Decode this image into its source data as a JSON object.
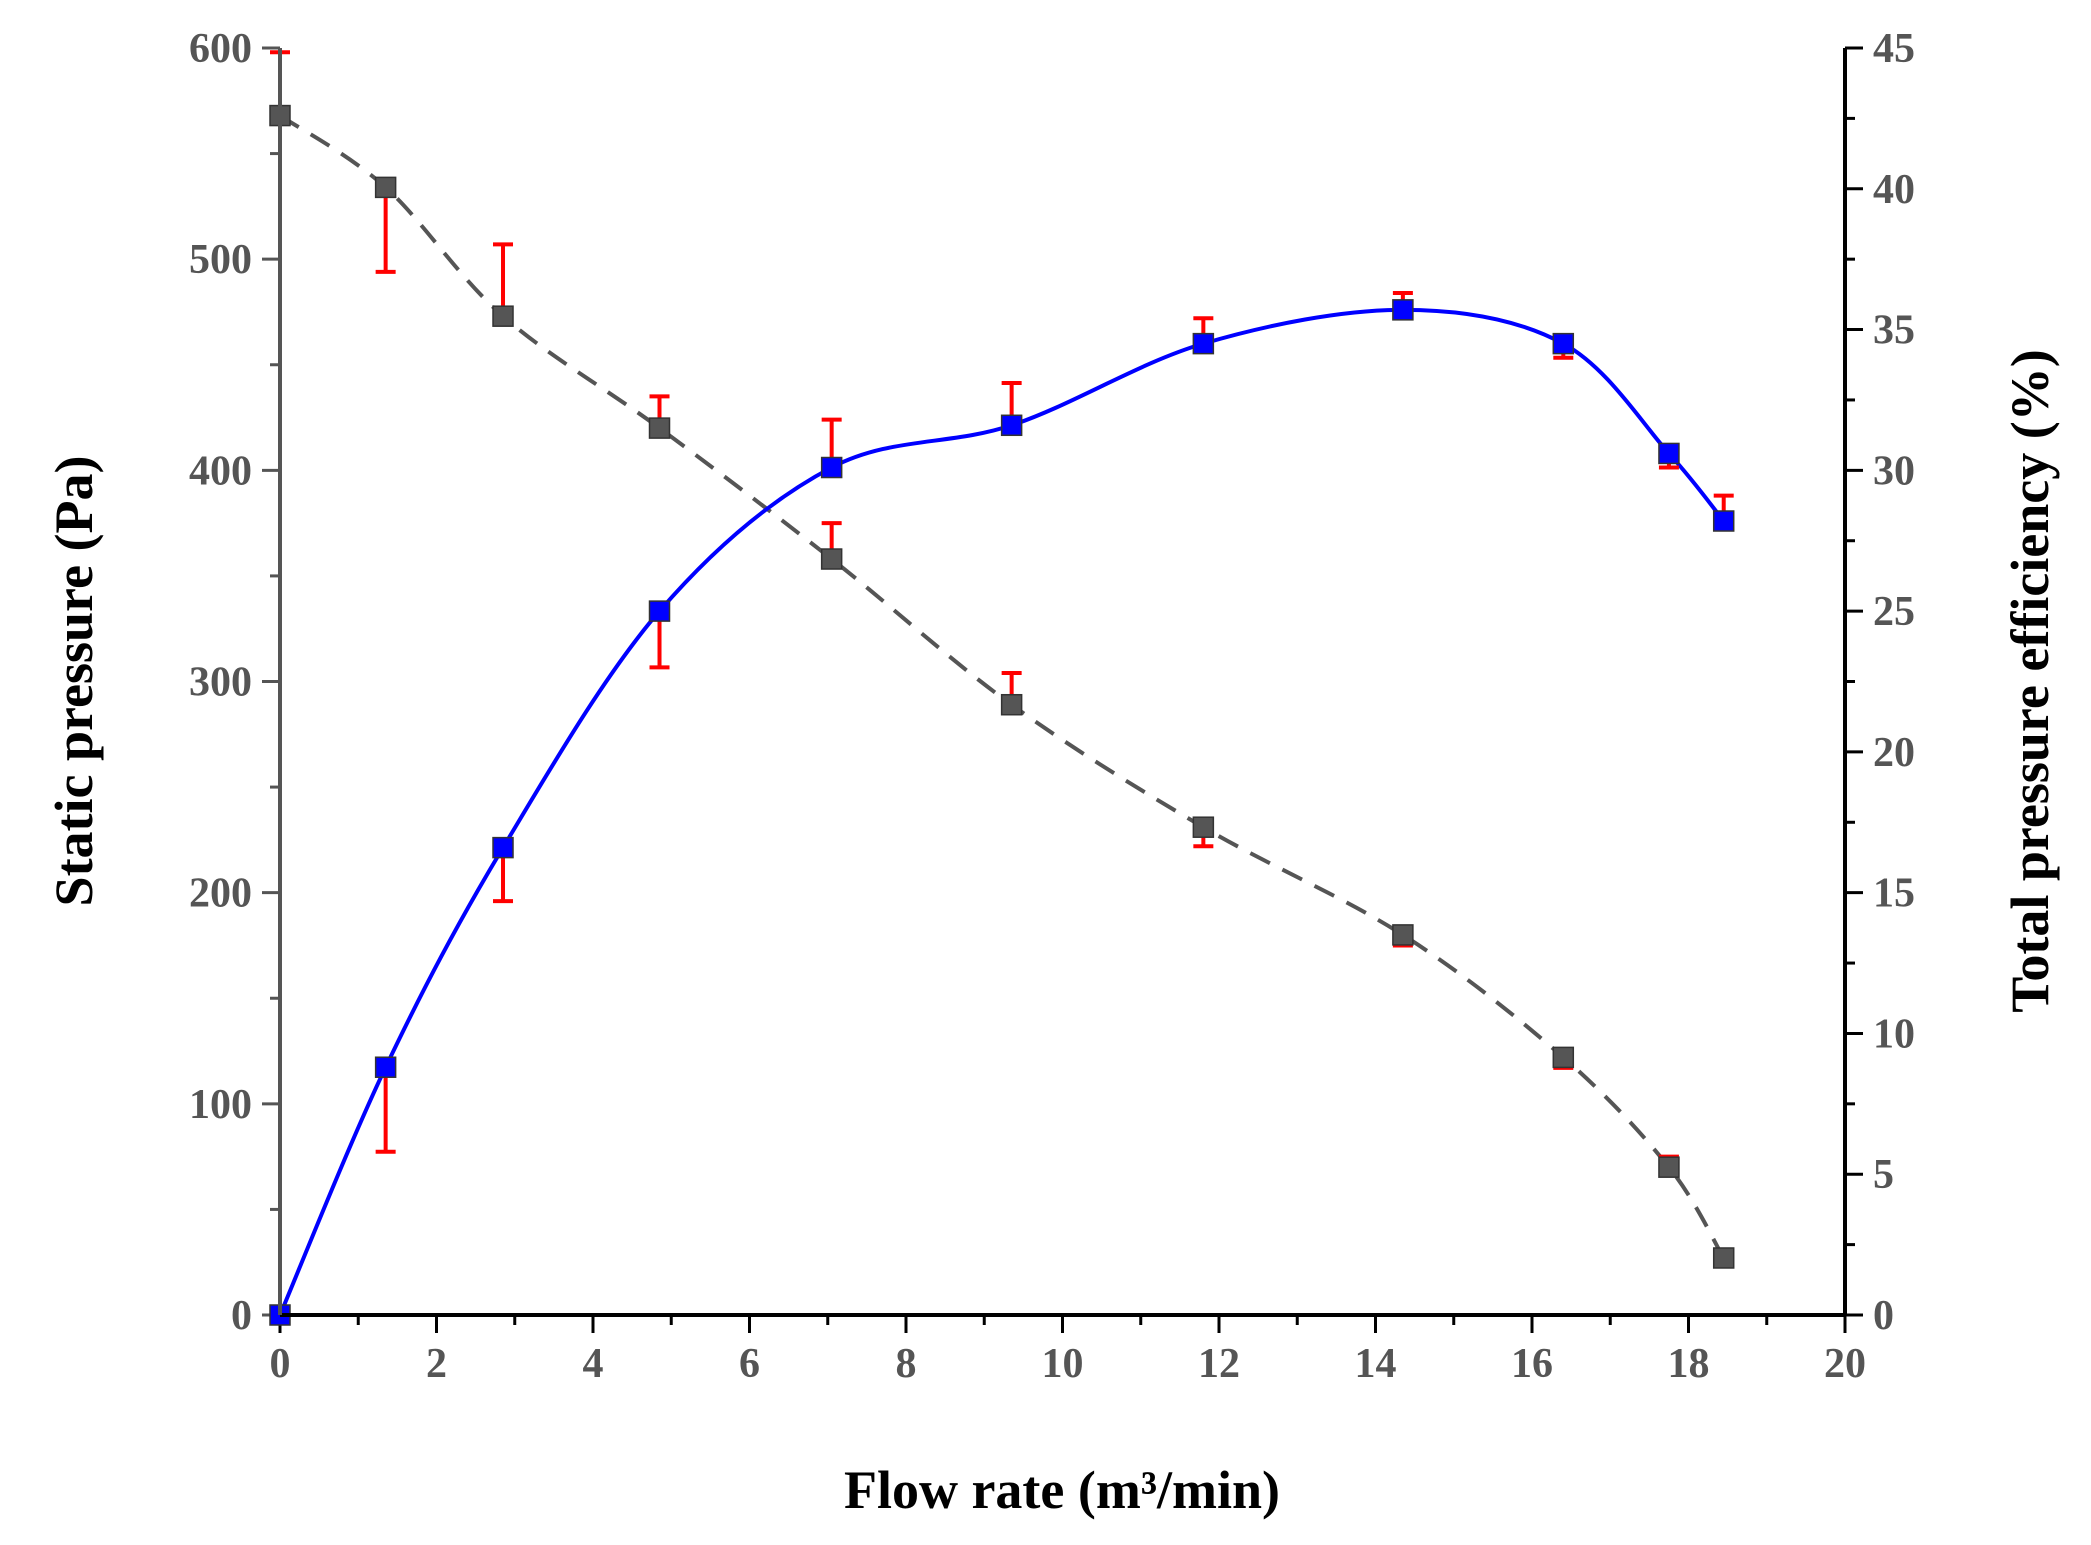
{
  "chart_data": {
    "type": "line",
    "title": "",
    "xlabel": "Flow rate (m³/min)",
    "ylabel": "Static pressure (Pa)",
    "y2label": "Total pressure efficiency (%)",
    "xlim": [
      0,
      20
    ],
    "ylim": [
      0,
      600
    ],
    "y2lim": [
      0,
      45
    ],
    "x_ticks": [
      0,
      2,
      4,
      6,
      8,
      10,
      12,
      14,
      16,
      18,
      20
    ],
    "y_ticks": [
      0,
      100,
      200,
      300,
      400,
      500,
      600
    ],
    "y2_ticks": [
      0,
      5,
      10,
      15,
      20,
      25,
      30,
      35,
      40,
      45
    ],
    "grid": false,
    "series": [
      {
        "name": "Static pressure",
        "axis": "left",
        "color": "#555555",
        "marker": "square",
        "line_style": "dashed",
        "errorbar_color": "#ff0000",
        "x": [
          0,
          1.35,
          2.85,
          4.85,
          7.05,
          9.35,
          11.8,
          14.35,
          16.4,
          17.75,
          18.45
        ],
        "y": [
          568,
          534,
          473,
          420,
          358,
          289,
          231,
          180,
          122,
          70,
          27
        ],
        "err_plus": [
          30,
          0,
          34,
          15,
          17,
          15,
          0,
          0,
          0,
          5,
          3
        ],
        "err_minus": [
          0,
          40,
          0,
          0,
          0,
          0,
          9,
          5,
          5,
          0,
          0
        ]
      },
      {
        "name": "Total pressure efficiency",
        "axis": "right",
        "color": "#0000ff",
        "marker": "square",
        "line_style": "solid",
        "errorbar_color": "#ff0000",
        "x": [
          0,
          1.35,
          2.85,
          4.85,
          7.05,
          9.35,
          11.8,
          14.35,
          16.4,
          17.75,
          18.45
        ],
        "y": [
          0,
          8.8,
          16.6,
          25.0,
          30.1,
          31.6,
          34.5,
          35.7,
          34.5,
          30.6,
          28.2
        ],
        "err_plus": [
          0,
          0,
          0,
          0,
          1.7,
          1.5,
          0.9,
          0.6,
          0,
          0,
          0.9
        ],
        "err_minus": [
          0,
          3.0,
          1.9,
          2.0,
          0,
          0,
          0,
          0,
          0.5,
          0.5,
          0
        ]
      }
    ]
  }
}
